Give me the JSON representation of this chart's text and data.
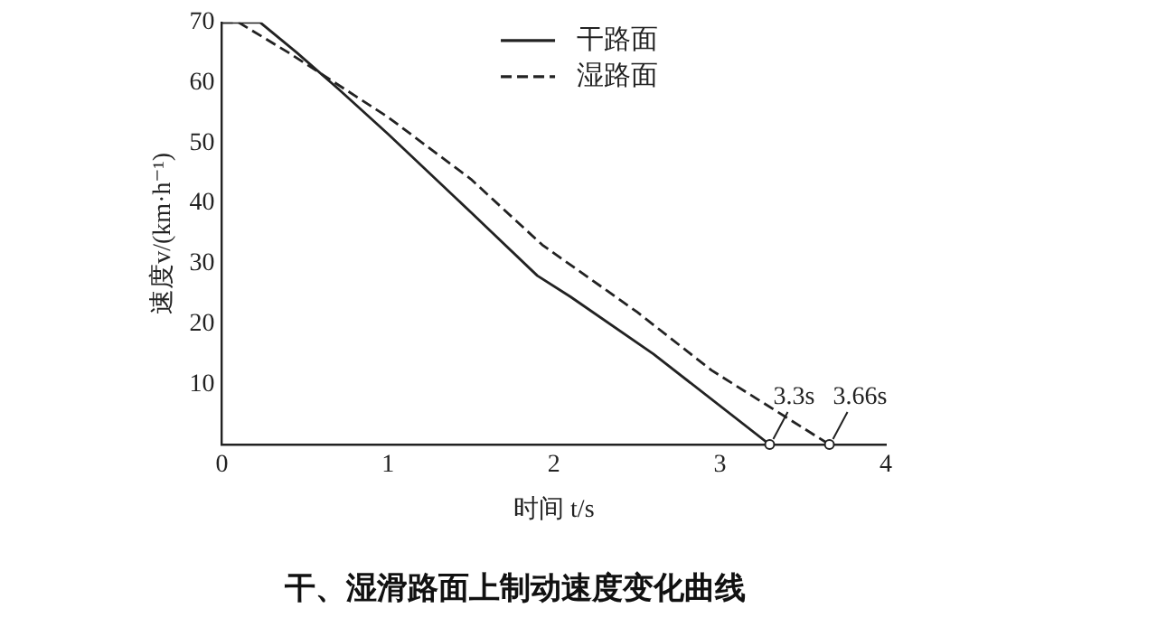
{
  "chart_data": {
    "type": "line",
    "title": "干、湿滑路面上制动速度变化曲线",
    "xlabel": "时间 t/s",
    "ylabel": "速度v/(km·h⁻¹)",
    "xlim": [
      0,
      4
    ],
    "xticks": [
      0,
      1,
      2,
      3,
      4
    ],
    "ylim": [
      0,
      70
    ],
    "yticks": [
      10,
      20,
      30,
      40,
      50,
      60,
      70
    ],
    "series": [
      {
        "name": "干路面",
        "color": "#222222",
        "line_style": "solid",
        "x": [
          0,
          0.23,
          0.45,
          0.7,
          1,
          1.5,
          1.9,
          2.1,
          2.6,
          3.3
        ],
        "values": [
          70,
          70,
          65,
          59,
          51.5,
          38.5,
          28,
          24.5,
          15,
          0
        ]
      },
      {
        "name": "湿路面",
        "color": "#222222",
        "line_style": "dashed",
        "x": [
          0,
          0.1,
          0.4,
          1,
          1.5,
          1.93,
          2.5,
          2.95,
          3.66
        ],
        "values": [
          70,
          70,
          65,
          54.3,
          44,
          33.1,
          22,
          12.3,
          0
        ]
      }
    ],
    "annotations": [
      {
        "text": "3.3s",
        "x": 3.3,
        "y": 0
      },
      {
        "text": "3.66s",
        "x": 3.66,
        "y": 0
      }
    ],
    "grid": false,
    "legend": "top right",
    "marker": "none"
  }
}
